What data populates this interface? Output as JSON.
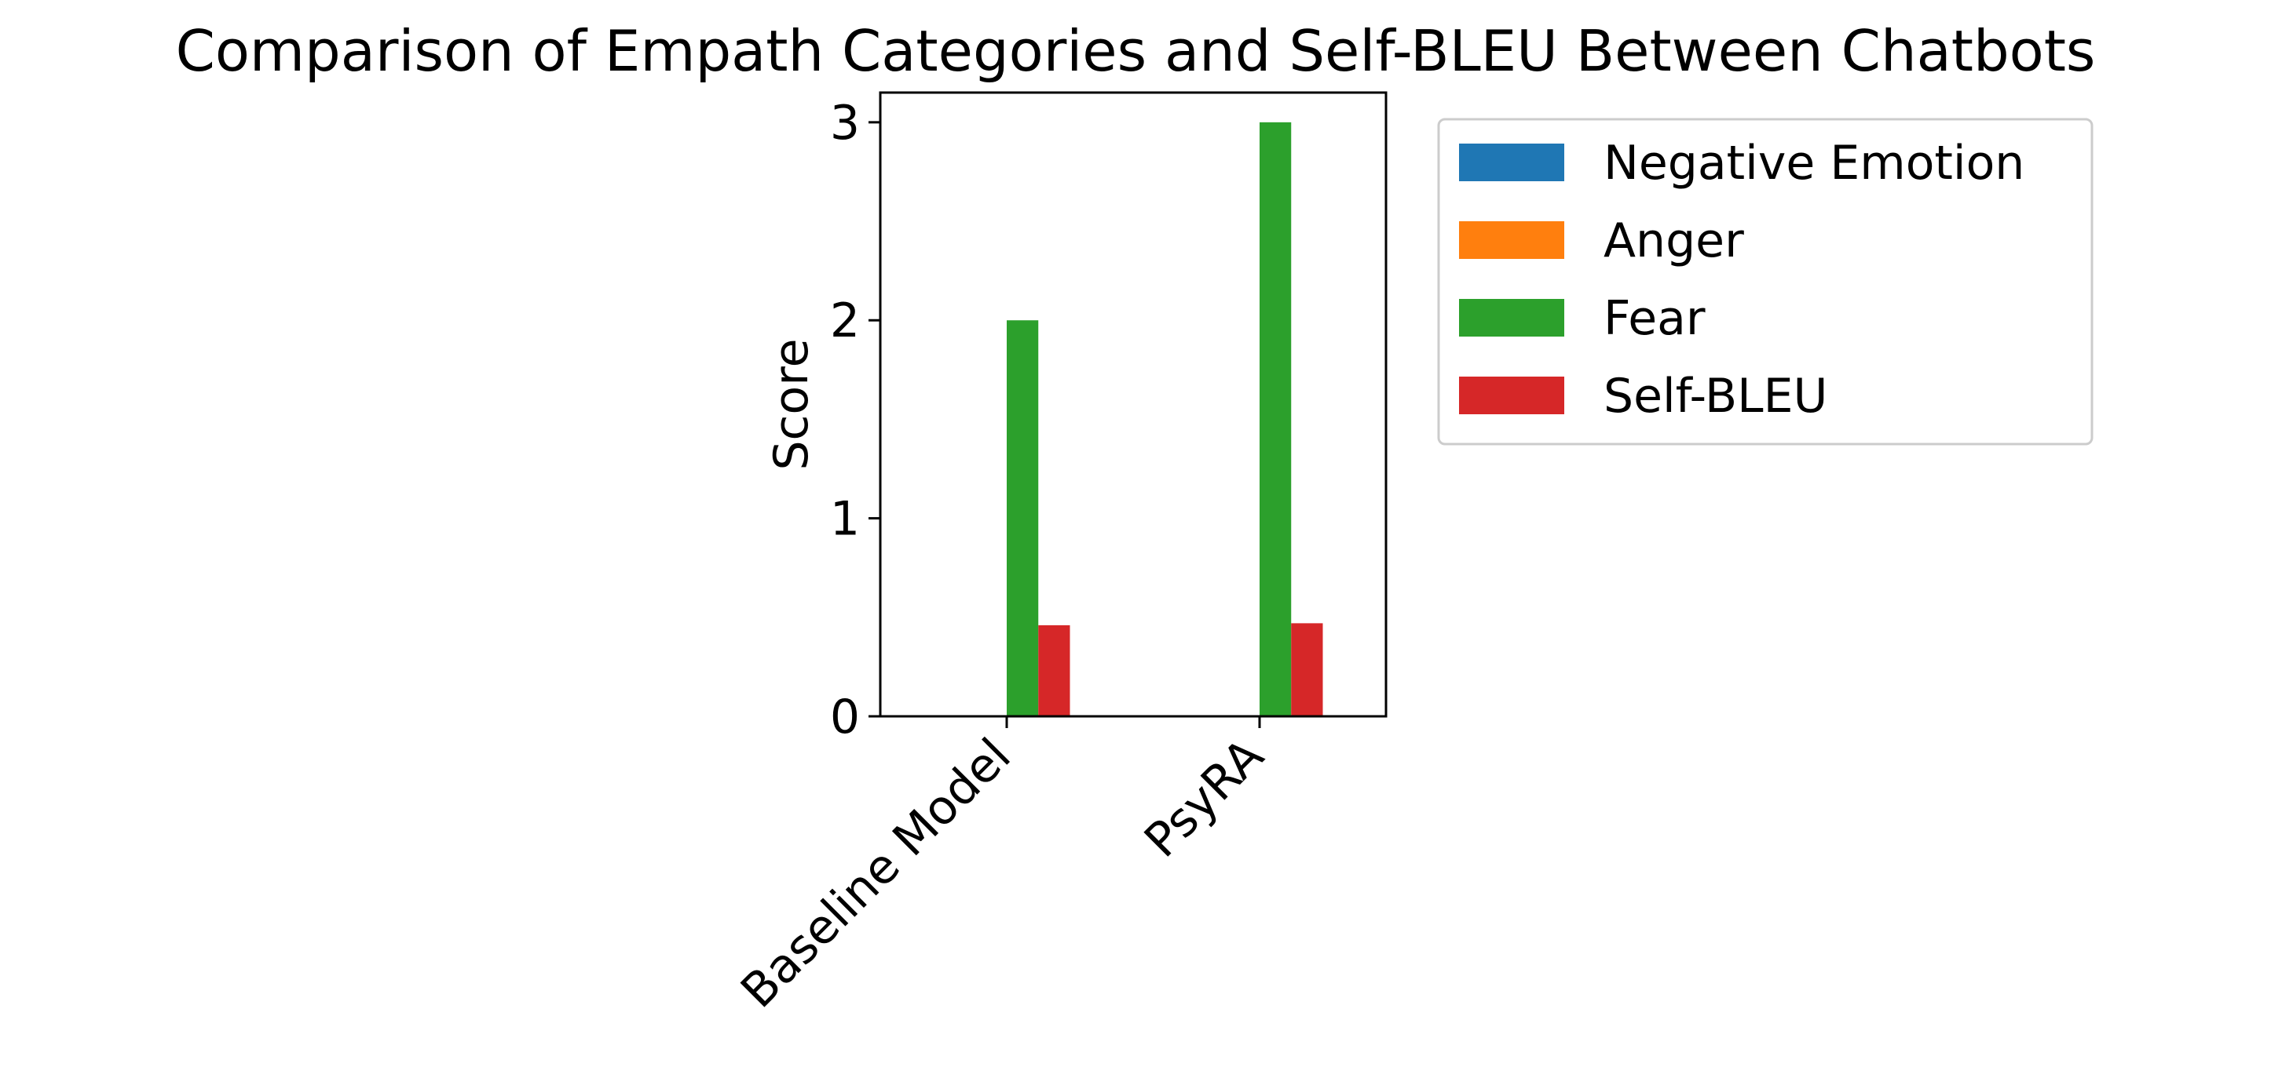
{
  "chart_data": {
    "type": "bar",
    "title": "Comparison of Empath Categories and Self-BLEU Between Chatbots",
    "xlabel": "",
    "ylabel": "Score",
    "categories": [
      "Baseline Model",
      "PsyRA"
    ],
    "series": [
      {
        "name": "Negative Emotion",
        "color": "#1f77b4",
        "values": [
          0,
          0
        ]
      },
      {
        "name": "Anger",
        "color": "#ff7f0e",
        "values": [
          0,
          0
        ]
      },
      {
        "name": "Fear",
        "color": "#2ca02c",
        "values": [
          2,
          3
        ]
      },
      {
        "name": "Self-BLEU",
        "color": "#d62728",
        "values": [
          0.46,
          0.47
        ]
      }
    ],
    "ylim": [
      0,
      3.15
    ],
    "yticks": [
      "0",
      "1",
      "2",
      "3"
    ],
    "grid": false,
    "legend_position": "outside-right"
  }
}
